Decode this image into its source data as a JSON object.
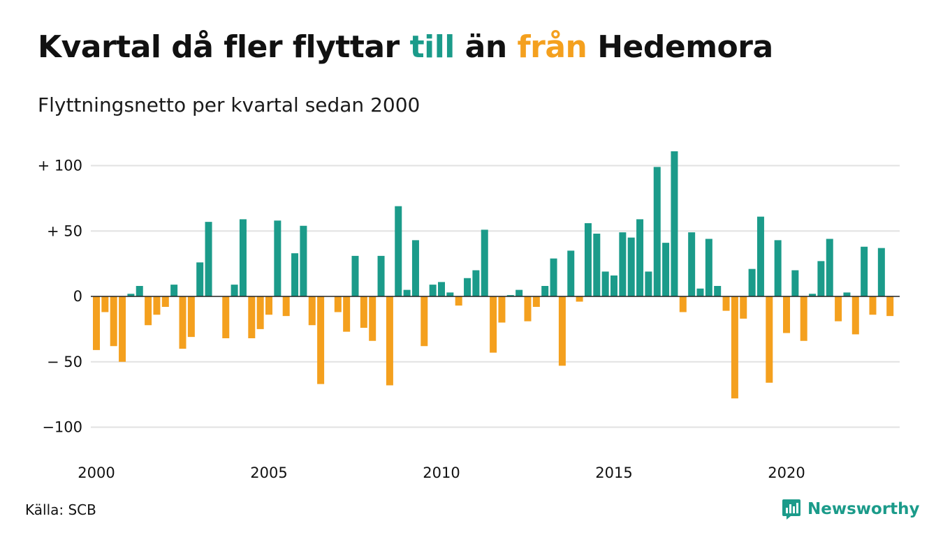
{
  "title": {
    "p1": "Kvartal då fler flyttar ",
    "till": "till",
    "p2": " än ",
    "fran": "från",
    "p3": " Hedemora"
  },
  "subtitle": "Flyttningsnetto per kvartal sedan 2000",
  "source": "Källa: SCB",
  "brand": {
    "name": "Newsworthy",
    "icon": "newsworthy-logo-icon"
  },
  "colors": {
    "positive": "#1b9b8a",
    "negative": "#f4a01e",
    "grid": "#e2e2e2",
    "zero": "#222222"
  },
  "chart_data": {
    "type": "bar",
    "title": "Kvartal då fler flyttar till än från Hedemora",
    "subtitle": "Flyttningsnetto per kvartal sedan 2000",
    "ylim": [
      -100,
      110
    ],
    "grid": true,
    "y_ticks": [
      {
        "value": 100,
        "label": "+ 100"
      },
      {
        "value": 50,
        "label": "+  50"
      },
      {
        "value": 0,
        "label": "0"
      },
      {
        "value": -50,
        "label": "− 50"
      },
      {
        "value": -100,
        "label": "−100"
      }
    ],
    "x_ticks": [
      "2000",
      "2005",
      "2010",
      "2015",
      "2020"
    ],
    "start_year": 2000,
    "values": [
      -41,
      -12,
      -38,
      -50,
      2,
      8,
      -22,
      -14,
      -8,
      9,
      -40,
      -31,
      26,
      57,
      0,
      -32,
      9,
      59,
      -32,
      -25,
      -14,
      58,
      -15,
      33,
      54,
      -22,
      -67,
      0,
      -12,
      -27,
      31,
      -24,
      -34,
      31,
      -68,
      69,
      5,
      43,
      -38,
      9,
      11,
      3,
      -7,
      14,
      20,
      51,
      -43,
      -20,
      1,
      5,
      -19,
      -8,
      8,
      29,
      -53,
      35,
      -4,
      56,
      48,
      19,
      16,
      49,
      45,
      59,
      19,
      99,
      41,
      111,
      -12,
      49,
      6,
      44,
      8,
      -11,
      -78,
      -17,
      21,
      61,
      -66,
      43,
      -28,
      20,
      -34,
      2,
      27,
      44,
      -19,
      3,
      -29,
      38,
      -14,
      37,
      -15
    ]
  }
}
